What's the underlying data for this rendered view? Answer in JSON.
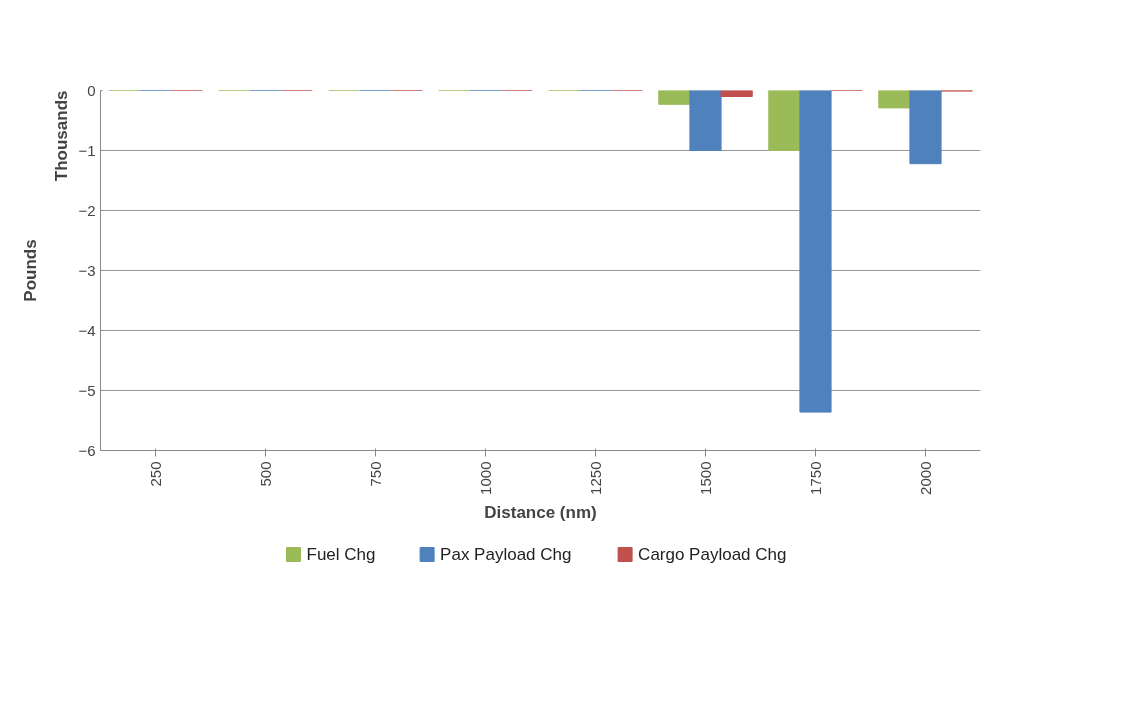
{
  "chart_data": {
    "type": "bar",
    "xlabel": "Distance (nm)",
    "ylabel": "Pounds",
    "annotations": [
      "Thousands"
    ],
    "categories": [
      "250",
      "500",
      "750",
      "1000",
      "1250",
      "1500",
      "1750",
      "2000"
    ],
    "series": [
      {
        "name": "Fuel Chg",
        "color": "#9bbb59",
        "values": [
          0,
          0,
          0,
          0,
          0,
          -0.23,
          -1.0,
          -0.29
        ]
      },
      {
        "name": "Pax Payload Chg",
        "color": "#4f81bd",
        "values": [
          0,
          0,
          0,
          0,
          0,
          -1.0,
          -5.36,
          -1.22
        ]
      },
      {
        "name": "Cargo Payload Chg",
        "color": "#c0504d",
        "values": [
          0,
          0,
          0,
          0,
          0,
          -0.1,
          0,
          -0.01
        ]
      }
    ],
    "ylim": [
      -6,
      0
    ],
    "yticks": [
      -6,
      -5,
      -4,
      -3,
      -2,
      -1,
      0
    ],
    "grid": "y",
    "legend": "bottom"
  }
}
